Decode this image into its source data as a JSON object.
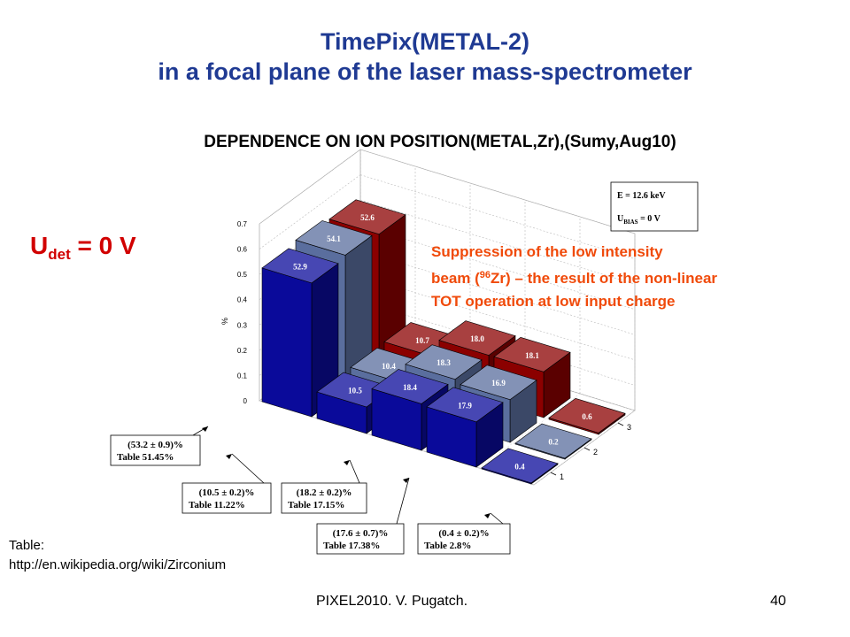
{
  "slide": {
    "title_line1": "TimePix(METAL-2)",
    "title_line2": "in a focal plane of the laser mass-spectrometer",
    "udet_main": "U",
    "udet_sub": "det",
    "udet_value": " = 0 V",
    "note_line1": "Suppression of the low intensity",
    "note_beam_prefix": "beam (",
    "note_sup": "96",
    "note_beam_suffix": "Zr) – the result of the non-linear",
    "note_line3": "TOT operation at low input charge",
    "table_label": "Table:",
    "table_url": "http://en.wikipedia.org/wiki/Zirconium",
    "footer_left": "PIXEL2010. V. Pugatch.",
    "page_number": "40"
  },
  "chart_data": {
    "type": "bar",
    "subtype": "3d-bar",
    "title": "DEPENDENCE ON ION POSITION(METAL,Zr),(Sumy,Aug10)",
    "zlabel": "%",
    "zlim": [
      0,
      0.7
    ],
    "z_ticks": [
      "0",
      "0.1",
      "0.2",
      "0.3",
      "0.4",
      "0.5",
      "0.6",
      "0.7"
    ],
    "row_ticks": [
      "1",
      "2",
      "3"
    ],
    "columns": 5,
    "series": [
      {
        "row": "1",
        "color": "#0a0a9a",
        "values": [
          0.529,
          0.105,
          0.184,
          0.179,
          0.004
        ],
        "labels": [
          "52.9",
          "10.5",
          "18.4",
          "17.9",
          "0.4"
        ]
      },
      {
        "row": "2",
        "color": "#5a6e9e",
        "values": [
          0.541,
          0.104,
          0.183,
          0.169,
          0.002
        ],
        "labels": [
          "54.1",
          "10.4",
          "18.3",
          "16.9",
          "0.2"
        ]
      },
      {
        "row": "3",
        "color": "#8b0000",
        "values": [
          0.526,
          0.107,
          0.18,
          0.181,
          0.006
        ],
        "labels": [
          "52.6",
          "10.7",
          "18.0",
          "18.1",
          "0.6"
        ]
      }
    ],
    "legend_box": {
      "line1": "E = 12.6 keV",
      "line2_main": "U",
      "line2_sub": "BIAS",
      "line2_rest": " = 0 V"
    },
    "annotations": [
      {
        "line1": "(53.2 ± 0.9)%",
        "line2": "Table  51.45%"
      },
      {
        "line1": "(10.5 ± 0.2)%",
        "line2": "Table  11.22%"
      },
      {
        "line1": "(18.2 ± 0.2)%",
        "line2": "Table  17.15%"
      },
      {
        "line1": "(17.6 ± 0.7)%",
        "line2": "Table  17.38%"
      },
      {
        "line1": "(0.4 ± 0.2)%",
        "line2": "Table  2.8%"
      }
    ]
  }
}
